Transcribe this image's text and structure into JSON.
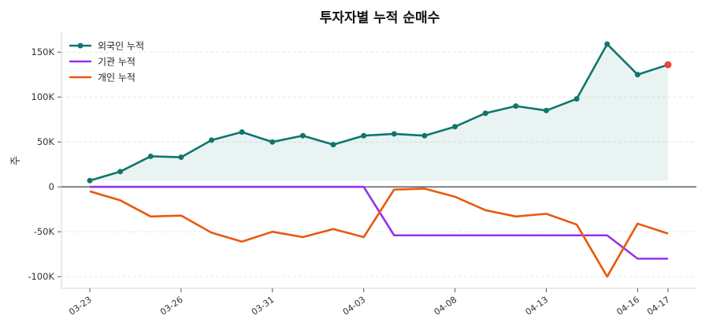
{
  "chart_data": {
    "type": "line",
    "title": "투자자별 누적 순매수",
    "xlabel": "",
    "ylabel": "주",
    "categories": [
      "03-23",
      "03-24",
      "03-25",
      "03-26",
      "03-27",
      "03-30",
      "03-31",
      "04-01",
      "04-02",
      "04-03",
      "04-06",
      "04-07",
      "04-08",
      "04-09",
      "04-10",
      "04-13",
      "04-14",
      "04-15",
      "04-16",
      "04-17"
    ],
    "x_tick_labels": [
      "03-23",
      "03-26",
      "03-31",
      "04-03",
      "04-08",
      "04-13",
      "04-16",
      "04-17"
    ],
    "y_ticks": [
      -100000,
      -50000,
      0,
      50000,
      100000,
      150000
    ],
    "y_tick_labels": [
      "-100K",
      "-50K",
      "0",
      "50K",
      "100K",
      "150K"
    ],
    "ylim": [
      -113000,
      173000
    ],
    "grid": "horizontal dashed",
    "legend_position": "top-left",
    "series": [
      {
        "name": "외국인 누적",
        "color": "#0f766e",
        "markers": true,
        "fill": true,
        "values": [
          7000,
          17000,
          34000,
          33000,
          52000,
          61000,
          50000,
          57000,
          47000,
          57000,
          59000,
          57000,
          67000,
          82000,
          90000,
          85000,
          98000,
          159000,
          125000,
          136000
        ]
      },
      {
        "name": "기관 누적",
        "color": "#9333ea",
        "markers": false,
        "values": [
          0,
          0,
          0,
          0,
          0,
          0,
          0,
          0,
          0,
          0,
          -54000,
          -54000,
          -54000,
          -54000,
          -54000,
          -54000,
          -54000,
          -54000,
          -80000,
          -80000
        ]
      },
      {
        "name": "개인 누적",
        "color": "#ea580c",
        "markers": false,
        "values": [
          -5000,
          -15000,
          -33000,
          -32000,
          -51000,
          -61000,
          -50000,
          -56000,
          -47000,
          -56000,
          -3000,
          -2000,
          -11000,
          -26000,
          -33000,
          -30000,
          -42000,
          -100000,
          -41000,
          -52000
        ]
      }
    ],
    "highlight_last_point_color": "#ef4444"
  }
}
